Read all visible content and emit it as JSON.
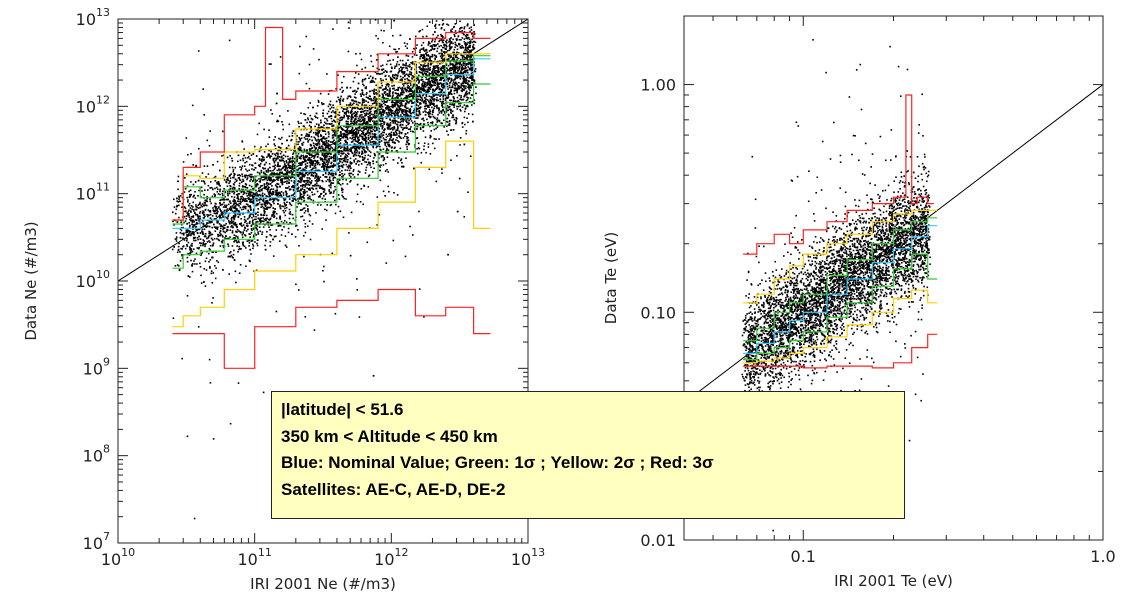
{
  "chart_data": [
    {
      "type": "scatter",
      "title": "",
      "xlabel": "IRI 2001 Ne (#/m3)",
      "ylabel": "Data Ne (#/m3)",
      "xscale": "log",
      "yscale": "log",
      "xlim": [
        10000000000.0,
        10000000000000.0
      ],
      "ylim": [
        10000000.0,
        10000000000000.0
      ],
      "x_ticks": [
        {
          "base": "10",
          "exp": "10",
          "value": 10000000000.0
        },
        {
          "base": "10",
          "exp": "11",
          "value": 100000000000.0
        },
        {
          "base": "10",
          "exp": "12",
          "value": 1000000000000.0
        },
        {
          "base": "10",
          "exp": "13",
          "value": 10000000000000.0
        }
      ],
      "y_ticks": [
        {
          "base": "10",
          "exp": "7",
          "value": 10000000.0
        },
        {
          "base": "10",
          "exp": "8",
          "value": 100000000.0
        },
        {
          "base": "10",
          "exp": "9",
          "value": 1000000000.0
        },
        {
          "base": "10",
          "exp": "10",
          "value": 10000000000.0
        },
        {
          "base": "10",
          "exp": "11",
          "value": 100000000000.0
        },
        {
          "base": "10",
          "exp": "12",
          "value": 1000000000000.0
        },
        {
          "base": "10",
          "exp": "13",
          "value": 10000000000000.0
        }
      ],
      "reference_line": {
        "x": [
          10000000000.0,
          10000000000000.0
        ],
        "y": [
          10000000000.0,
          10000000000000.0
        ]
      },
      "series": [
        {
          "name": "Blue: Nominal Value",
          "color": "#33ccff",
          "x": [
            25000000000.0,
            40000000000.0,
            60000000000.0,
            100000000000.0,
            200000000000.0,
            400000000000.0,
            800000000000.0,
            1500000000000.0,
            2500000000000.0,
            4000000000000.0
          ],
          "y": [
            40000000000.0,
            50000000000.0,
            60000000000.0,
            90000000000.0,
            180000000000.0,
            360000000000.0,
            750000000000.0,
            1400000000000.0,
            2300000000000.0,
            3500000000000.0
          ]
        },
        {
          "name": "Green: 1σ upper",
          "color": "#33cc33",
          "x": [
            25000000000.0,
            30000000000.0,
            40000000000.0,
            60000000000.0,
            100000000000.0,
            200000000000.0,
            400000000000.0,
            800000000000.0,
            1500000000000.0,
            2500000000000.0,
            4000000000000.0
          ],
          "y": [
            45000000000.0,
            120000000000.0,
            90000000000.0,
            110000000000.0,
            160000000000.0,
            300000000000.0,
            600000000000.0,
            1200000000000.0,
            2200000000000.0,
            3300000000000.0,
            3800000000000.0
          ]
        },
        {
          "name": "Green: 1σ lower",
          "color": "#33cc33",
          "x": [
            25000000000.0,
            30000000000.0,
            40000000000.0,
            60000000000.0,
            100000000000.0,
            200000000000.0,
            400000000000.0,
            800000000000.0,
            1500000000000.0,
            2500000000000.0,
            4000000000000.0
          ],
          "y": [
            14000000000.0,
            20000000000.0,
            22000000000.0,
            30000000000.0,
            45000000000.0,
            80000000000.0,
            150000000000.0,
            300000000000.0,
            600000000000.0,
            1100000000000.0,
            1800000000000.0
          ]
        },
        {
          "name": "Yellow: 2σ upper",
          "color": "#ffd000",
          "x": [
            25000000000.0,
            30000000000.0,
            40000000000.0,
            60000000000.0,
            100000000000.0,
            200000000000.0,
            400000000000.0,
            800000000000.0,
            1500000000000.0,
            2500000000000.0,
            4000000000000.0
          ],
          "y": [
            50000000000.0,
            160000000000.0,
            150000000000.0,
            300000000000.0,
            320000000000.0,
            550000000000.0,
            1000000000000.0,
            1900000000000.0,
            3200000000000.0,
            4000000000000.0,
            4000000000000.0
          ]
        },
        {
          "name": "Yellow: 2σ lower",
          "color": "#ffd000",
          "x": [
            25000000000.0,
            30000000000.0,
            40000000000.0,
            60000000000.0,
            100000000000.0,
            200000000000.0,
            400000000000.0,
            800000000000.0,
            1500000000000.0,
            2500000000000.0,
            4000000000000.0
          ],
          "y": [
            3000000000.0,
            4000000000.0,
            5000000000.0,
            8000000000.0,
            13000000000.0,
            20000000000.0,
            40000000000.0,
            80000000000.0,
            200000000000.0,
            400000000000.0,
            40000000000.0
          ]
        },
        {
          "name": "Red: 3σ upper",
          "color": "#ff2222",
          "x": [
            25000000000.0,
            30000000000.0,
            40000000000.0,
            60000000000.0,
            100000000000.0,
            120000000000.0,
            160000000000.0,
            200000000000.0,
            400000000000.0,
            800000000000.0,
            1500000000000.0,
            2500000000000.0,
            4000000000000.0
          ],
          "y": [
            50000000000.0,
            200000000000.0,
            300000000000.0,
            800000000000.0,
            1000000000000.0,
            8000000000000.0,
            1200000000000.0,
            1500000000000.0,
            2500000000000.0,
            4000000000000.0,
            6000000000000.0,
            7000000000000.0,
            6000000000000.0
          ]
        },
        {
          "name": "Red: 3σ lower",
          "color": "#ff2222",
          "x": [
            25000000000.0,
            30000000000.0,
            40000000000.0,
            60000000000.0,
            100000000000.0,
            200000000000.0,
            400000000000.0,
            800000000000.0,
            1500000000000.0,
            2500000000000.0,
            4000000000000.0
          ],
          "y": [
            2500000000.0,
            2500000000.0,
            2500000000.0,
            1000000000.0,
            3000000000.0,
            5000000000.0,
            6000000000.0,
            8000000000.0,
            4000000000.0,
            5000000000.0,
            2500000000.0
          ]
        }
      ]
    },
    {
      "type": "scatter",
      "title": "",
      "xlabel": "IRI 2001 Te (eV)",
      "ylabel": "Data Te (eV)",
      "xscale": "log",
      "yscale": "log",
      "xlim": [
        0.04,
        1.0
      ],
      "ylim": [
        0.01,
        2.0
      ],
      "x_ticks": [
        {
          "label": "0.1",
          "value": 0.1
        },
        {
          "label": "1.0",
          "value": 1.0
        }
      ],
      "y_ticks": [
        {
          "label": "0.01",
          "value": 0.01
        },
        {
          "label": "0.10",
          "value": 0.1
        },
        {
          "label": "1.00",
          "value": 1.0
        }
      ],
      "reference_line": {
        "x": [
          0.04,
          1.0
        ],
        "y": [
          0.04,
          1.0
        ]
      },
      "series": [
        {
          "name": "Blue: Nominal Value",
          "color": "#33ccff",
          "x": [
            0.063,
            0.07,
            0.08,
            0.09,
            0.1,
            0.12,
            0.14,
            0.17,
            0.2,
            0.23,
            0.26
          ],
          "y": [
            0.066,
            0.073,
            0.082,
            0.092,
            0.1,
            0.12,
            0.14,
            0.165,
            0.19,
            0.215,
            0.24
          ]
        },
        {
          "name": "Green: 1σ upper",
          "color": "#33cc33",
          "x": [
            0.063,
            0.07,
            0.08,
            0.09,
            0.1,
            0.12,
            0.14,
            0.17,
            0.2,
            0.23,
            0.26
          ],
          "y": [
            0.075,
            0.085,
            0.1,
            0.11,
            0.12,
            0.145,
            0.17,
            0.2,
            0.23,
            0.25,
            0.26
          ]
        },
        {
          "name": "Green: 1σ lower",
          "color": "#33cc33",
          "x": [
            0.063,
            0.07,
            0.08,
            0.09,
            0.1,
            0.12,
            0.14,
            0.17,
            0.2,
            0.23,
            0.26
          ],
          "y": [
            0.062,
            0.066,
            0.07,
            0.075,
            0.082,
            0.095,
            0.11,
            0.13,
            0.155,
            0.18,
            0.14
          ]
        },
        {
          "name": "Yellow: 2σ upper",
          "color": "#ffd000",
          "x": [
            0.063,
            0.07,
            0.08,
            0.09,
            0.1,
            0.12,
            0.14,
            0.17,
            0.2,
            0.23,
            0.26
          ],
          "y": [
            0.11,
            0.12,
            0.14,
            0.16,
            0.18,
            0.2,
            0.22,
            0.25,
            0.27,
            0.28,
            0.28
          ]
        },
        {
          "name": "Yellow: 2σ lower",
          "color": "#ffd000",
          "x": [
            0.063,
            0.07,
            0.08,
            0.09,
            0.1,
            0.12,
            0.14,
            0.17,
            0.2,
            0.23,
            0.26
          ],
          "y": [
            0.06,
            0.061,
            0.063,
            0.066,
            0.07,
            0.078,
            0.088,
            0.1,
            0.115,
            0.125,
            0.11
          ]
        },
        {
          "name": "Red: 3σ upper",
          "color": "#ff2222",
          "x": [
            0.063,
            0.07,
            0.08,
            0.09,
            0.1,
            0.12,
            0.14,
            0.17,
            0.2,
            0.22,
            0.23,
            0.24,
            0.26
          ],
          "y": [
            0.18,
            0.2,
            0.22,
            0.2,
            0.23,
            0.25,
            0.28,
            0.3,
            0.32,
            0.9,
            0.3,
            0.32,
            0.3
          ]
        },
        {
          "name": "Red: 3σ lower",
          "color": "#ff2222",
          "x": [
            0.063,
            0.07,
            0.08,
            0.09,
            0.1,
            0.12,
            0.14,
            0.17,
            0.2,
            0.23,
            0.26
          ],
          "y": [
            0.058,
            0.058,
            0.058,
            0.058,
            0.057,
            0.058,
            0.058,
            0.057,
            0.06,
            0.07,
            0.08
          ]
        }
      ]
    }
  ],
  "legend_box": {
    "line1": "|latitude| < 51.6",
    "line2": "350 km < Altitude < 450 km",
    "line3": "Blue: Nominal Value; Green: 1σ ; Yellow: 2σ ; Red: 3σ",
    "line4": "Satellites: AE-C, AE-D, DE-2"
  }
}
